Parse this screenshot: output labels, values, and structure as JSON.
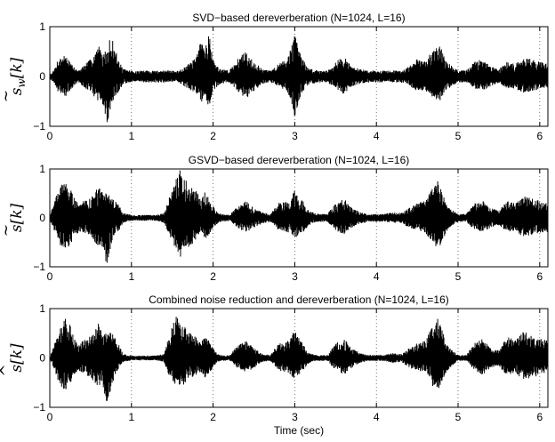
{
  "chart_data": [
    {
      "type": "line",
      "title": "SVD−based dereverberation (N=1024, L=16)",
      "ylabel": "s̃_w[k]",
      "ylabel_parts": {
        "accent": "~",
        "sym": "s",
        "sub": "w",
        "arg": "[k]"
      },
      "xlabel": "",
      "xlim": [
        0,
        6.1
      ],
      "ylim": [
        -1,
        1
      ],
      "xticks": [
        0,
        1,
        2,
        3,
        4,
        5,
        6
      ],
      "yticks": [
        -1,
        0,
        1
      ],
      "xtick_labels": [
        "0",
        "1",
        "2",
        "3",
        "4",
        "5",
        "6"
      ],
      "ytick_labels": [
        "−1",
        "0",
        "1"
      ],
      "grid": "x-dotted",
      "envelope": {
        "time": [
          0,
          0.05,
          0.1,
          0.15,
          0.2,
          0.25,
          0.3,
          0.35,
          0.4,
          0.5,
          0.55,
          0.6,
          0.65,
          0.7,
          0.75,
          0.8,
          0.85,
          0.9,
          1.0,
          1.05,
          1.1,
          1.2,
          1.3,
          1.4,
          1.5,
          1.55,
          1.6,
          1.7,
          1.8,
          1.85,
          1.9,
          1.95,
          2.0,
          2.05,
          2.1,
          2.2,
          2.3,
          2.4,
          2.5,
          2.6,
          2.7,
          2.8,
          2.9,
          2.95,
          3.0,
          3.05,
          3.1,
          3.15,
          3.2,
          3.3,
          3.4,
          3.5,
          3.6,
          3.7,
          3.8,
          3.9,
          4.0,
          4.1,
          4.2,
          4.3,
          4.4,
          4.5,
          4.6,
          4.7,
          4.75,
          4.8,
          4.85,
          4.9,
          5.0,
          5.1,
          5.2,
          5.3,
          5.4,
          5.5,
          5.6,
          5.7,
          5.8,
          5.9,
          6.0,
          6.1
        ],
        "upper": [
          0.05,
          0.12,
          0.35,
          0.4,
          0.45,
          0.3,
          0.18,
          0.12,
          0.2,
          0.35,
          0.5,
          0.62,
          0.45,
          0.55,
          0.85,
          0.55,
          0.3,
          0.15,
          0.12,
          0.1,
          0.12,
          0.12,
          0.12,
          0.12,
          0.12,
          0.1,
          0.15,
          0.25,
          0.4,
          0.75,
          0.6,
          0.9,
          0.35,
          0.2,
          0.15,
          0.12,
          0.35,
          0.5,
          0.3,
          0.15,
          0.12,
          0.25,
          0.35,
          0.6,
          0.85,
          0.55,
          0.35,
          0.2,
          0.15,
          0.12,
          0.12,
          0.3,
          0.4,
          0.2,
          0.15,
          0.12,
          0.12,
          0.12,
          0.12,
          0.12,
          0.2,
          0.35,
          0.3,
          0.6,
          0.68,
          0.55,
          0.3,
          0.25,
          0.12,
          0.12,
          0.3,
          0.35,
          0.2,
          0.15,
          0.3,
          0.25,
          0.4,
          0.35,
          0.3,
          0.25
        ],
        "lower": [
          -0.05,
          -0.12,
          -0.3,
          -0.35,
          -0.4,
          -0.28,
          -0.18,
          -0.12,
          -0.2,
          -0.3,
          -0.42,
          -0.55,
          -0.6,
          -0.95,
          -0.6,
          -0.4,
          -0.3,
          -0.15,
          -0.12,
          -0.1,
          -0.12,
          -0.12,
          -0.12,
          -0.12,
          -0.12,
          -0.1,
          -0.15,
          -0.25,
          -0.35,
          -0.5,
          -0.5,
          -0.6,
          -0.3,
          -0.2,
          -0.15,
          -0.12,
          -0.3,
          -0.45,
          -0.3,
          -0.15,
          -0.12,
          -0.2,
          -0.3,
          -0.45,
          -0.82,
          -0.5,
          -0.3,
          -0.2,
          -0.15,
          -0.12,
          -0.12,
          -0.25,
          -0.35,
          -0.2,
          -0.15,
          -0.12,
          -0.12,
          -0.12,
          -0.12,
          -0.12,
          -0.18,
          -0.3,
          -0.28,
          -0.45,
          -0.52,
          -0.45,
          -0.3,
          -0.22,
          -0.12,
          -0.12,
          -0.25,
          -0.3,
          -0.2,
          -0.15,
          -0.25,
          -0.25,
          -0.35,
          -0.3,
          -0.25,
          -0.25
        ]
      }
    },
    {
      "type": "line",
      "title": "GSVD−based dereverberation (N=1024, L=16)",
      "ylabel": "s̃[k]",
      "ylabel_parts": {
        "accent": "~",
        "sym": "s",
        "sub": "",
        "arg": "[k]"
      },
      "xlabel": "",
      "xlim": [
        0,
        6.1
      ],
      "ylim": [
        -1,
        1
      ],
      "xticks": [
        0,
        1,
        2,
        3,
        4,
        5,
        6
      ],
      "yticks": [
        -1,
        0,
        1
      ],
      "xtick_labels": [
        "0",
        "1",
        "2",
        "3",
        "4",
        "5",
        "6"
      ],
      "ytick_labels": [
        "−1",
        "0",
        "1"
      ],
      "grid": "x-dotted",
      "envelope": {
        "time": [
          0,
          0.05,
          0.1,
          0.15,
          0.2,
          0.25,
          0.3,
          0.35,
          0.4,
          0.5,
          0.55,
          0.6,
          0.65,
          0.7,
          0.75,
          0.8,
          0.85,
          0.9,
          1.0,
          1.05,
          1.1,
          1.2,
          1.3,
          1.4,
          1.5,
          1.55,
          1.6,
          1.7,
          1.8,
          1.85,
          1.9,
          1.95,
          2.0,
          2.05,
          2.1,
          2.2,
          2.3,
          2.4,
          2.5,
          2.6,
          2.7,
          2.8,
          2.9,
          2.95,
          3.0,
          3.05,
          3.1,
          3.15,
          3.2,
          3.3,
          3.4,
          3.5,
          3.6,
          3.7,
          3.8,
          3.9,
          4.0,
          4.1,
          4.2,
          4.3,
          4.4,
          4.5,
          4.6,
          4.7,
          4.75,
          4.8,
          4.85,
          4.9,
          5.0,
          5.1,
          5.2,
          5.3,
          5.4,
          5.5,
          5.6,
          5.7,
          5.8,
          5.9,
          6.0,
          6.1
        ],
        "upper": [
          0.05,
          0.3,
          0.55,
          0.7,
          0.72,
          0.6,
          0.4,
          0.3,
          0.35,
          0.4,
          0.55,
          0.65,
          0.5,
          0.5,
          0.45,
          0.35,
          0.25,
          0.1,
          0.06,
          0.05,
          0.06,
          0.06,
          0.06,
          0.1,
          0.6,
          0.8,
          1.0,
          0.7,
          0.55,
          0.35,
          0.55,
          0.4,
          0.25,
          0.12,
          0.08,
          0.06,
          0.25,
          0.35,
          0.2,
          0.12,
          0.08,
          0.3,
          0.35,
          0.4,
          0.6,
          0.4,
          0.35,
          0.2,
          0.12,
          0.08,
          0.08,
          0.3,
          0.4,
          0.2,
          0.12,
          0.08,
          0.08,
          0.08,
          0.12,
          0.1,
          0.2,
          0.3,
          0.35,
          0.65,
          0.75,
          0.6,
          0.3,
          0.2,
          0.08,
          0.08,
          0.3,
          0.35,
          0.2,
          0.15,
          0.35,
          0.3,
          0.45,
          0.4,
          0.35,
          0.3
        ],
        "lower": [
          -0.05,
          -0.25,
          -0.5,
          -0.6,
          -0.65,
          -0.55,
          -0.4,
          -0.3,
          -0.3,
          -0.35,
          -0.5,
          -0.6,
          -0.6,
          -1.0,
          -0.55,
          -0.35,
          -0.25,
          -0.1,
          -0.06,
          -0.05,
          -0.06,
          -0.06,
          -0.06,
          -0.1,
          -0.5,
          -0.65,
          -0.8,
          -0.6,
          -0.45,
          -0.3,
          -0.45,
          -0.35,
          -0.2,
          -0.12,
          -0.08,
          -0.06,
          -0.2,
          -0.3,
          -0.2,
          -0.12,
          -0.08,
          -0.25,
          -0.3,
          -0.3,
          -0.45,
          -0.35,
          -0.3,
          -0.2,
          -0.12,
          -0.08,
          -0.08,
          -0.25,
          -0.35,
          -0.2,
          -0.12,
          -0.08,
          -0.08,
          -0.08,
          -0.1,
          -0.1,
          -0.2,
          -0.25,
          -0.3,
          -0.55,
          -0.65,
          -0.55,
          -0.3,
          -0.2,
          -0.08,
          -0.08,
          -0.25,
          -0.3,
          -0.2,
          -0.15,
          -0.3,
          -0.28,
          -0.4,
          -0.35,
          -0.3,
          -0.3
        ]
      }
    },
    {
      "type": "line",
      "title": "Combined noise reduction and dereverberation (N=1024, L=16)",
      "ylabel": "ŝ[k]",
      "ylabel_parts": {
        "accent": "^",
        "sym": "s",
        "sub": "",
        "arg": "[k]"
      },
      "xlabel": "Time (sec)",
      "xlim": [
        0,
        6.1
      ],
      "ylim": [
        -1,
        1
      ],
      "xticks": [
        0,
        1,
        2,
        3,
        4,
        5,
        6
      ],
      "yticks": [
        -1,
        0,
        1
      ],
      "xtick_labels": [
        "0",
        "1",
        "2",
        "3",
        "4",
        "5",
        "6"
      ],
      "ytick_labels": [
        "−1",
        "0",
        "1"
      ],
      "grid": "x-dotted",
      "envelope": {
        "time": [
          0,
          0.05,
          0.1,
          0.15,
          0.2,
          0.25,
          0.3,
          0.35,
          0.4,
          0.5,
          0.55,
          0.6,
          0.65,
          0.7,
          0.75,
          0.8,
          0.85,
          0.9,
          1.0,
          1.05,
          1.1,
          1.2,
          1.3,
          1.4,
          1.5,
          1.55,
          1.6,
          1.7,
          1.8,
          1.85,
          1.9,
          1.95,
          2.0,
          2.05,
          2.1,
          2.2,
          2.3,
          2.4,
          2.5,
          2.6,
          2.7,
          2.8,
          2.9,
          2.95,
          3.0,
          3.05,
          3.1,
          3.15,
          3.2,
          3.3,
          3.4,
          3.5,
          3.6,
          3.7,
          3.8,
          3.9,
          4.0,
          4.1,
          4.2,
          4.3,
          4.4,
          4.5,
          4.6,
          4.7,
          4.75,
          4.8,
          4.85,
          4.9,
          5.0,
          5.1,
          5.2,
          5.3,
          5.4,
          5.5,
          5.6,
          5.7,
          5.8,
          5.9,
          6.0,
          6.1
        ],
        "upper": [
          0.03,
          0.25,
          0.5,
          0.7,
          0.85,
          0.7,
          0.4,
          0.25,
          0.35,
          0.45,
          0.55,
          0.75,
          0.5,
          0.5,
          0.55,
          0.4,
          0.25,
          0.08,
          0.05,
          0.04,
          0.05,
          0.05,
          0.05,
          0.08,
          0.7,
          0.9,
          0.75,
          0.55,
          0.4,
          0.3,
          0.45,
          0.35,
          0.2,
          0.08,
          0.06,
          0.05,
          0.25,
          0.35,
          0.2,
          0.08,
          0.06,
          0.3,
          0.35,
          0.45,
          0.55,
          0.4,
          0.3,
          0.15,
          0.08,
          0.06,
          0.06,
          0.3,
          0.4,
          0.2,
          0.1,
          0.06,
          0.06,
          0.06,
          0.1,
          0.08,
          0.2,
          0.3,
          0.35,
          0.7,
          0.8,
          0.6,
          0.3,
          0.2,
          0.06,
          0.06,
          0.3,
          0.4,
          0.2,
          0.15,
          0.45,
          0.35,
          0.55,
          0.45,
          0.4,
          0.35
        ],
        "lower": [
          -0.03,
          -0.2,
          -0.45,
          -0.6,
          -0.7,
          -0.6,
          -0.35,
          -0.25,
          -0.3,
          -0.4,
          -0.5,
          -0.6,
          -0.55,
          -1.0,
          -0.6,
          -0.35,
          -0.2,
          -0.08,
          -0.05,
          -0.04,
          -0.05,
          -0.05,
          -0.05,
          -0.08,
          -0.55,
          -0.6,
          -0.6,
          -0.45,
          -0.35,
          -0.28,
          -0.4,
          -0.3,
          -0.2,
          -0.08,
          -0.06,
          -0.05,
          -0.2,
          -0.3,
          -0.2,
          -0.08,
          -0.06,
          -0.25,
          -0.3,
          -0.35,
          -0.45,
          -0.35,
          -0.25,
          -0.15,
          -0.08,
          -0.06,
          -0.06,
          -0.25,
          -0.35,
          -0.2,
          -0.1,
          -0.06,
          -0.06,
          -0.06,
          -0.1,
          -0.08,
          -0.2,
          -0.25,
          -0.3,
          -0.6,
          -0.7,
          -0.55,
          -0.3,
          -0.2,
          -0.06,
          -0.06,
          -0.25,
          -0.35,
          -0.2,
          -0.15,
          -0.4,
          -0.3,
          -0.45,
          -0.4,
          -0.35,
          -0.3
        ]
      }
    }
  ]
}
